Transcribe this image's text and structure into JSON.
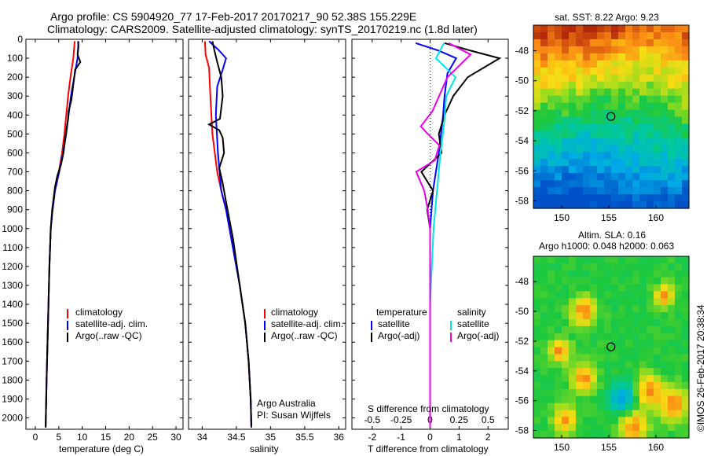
{
  "title_line1": "Argo profile: CS 5904920_77 17-Feb-2017 20170217_90 52.38S 155.229E",
  "title_line2": "Climatology: CARS2009. Satellite-adjusted climatology: synTS_20170219.nc (1.8d later)",
  "colors": {
    "climatology": "#ff0000",
    "satellite": "#0000ff",
    "argo": "#000000",
    "satellite_salinity": "#00e5e5",
    "argo_salinity": "#e800e8"
  },
  "chart_data": [
    {
      "type": "line",
      "xlabel": "temperature (deg C)",
      "xlim": [
        -2,
        31.5
      ],
      "ylim": [
        2060,
        0
      ],
      "xticks": [
        "0",
        "5",
        "10",
        "15",
        "20",
        "25",
        "30"
      ],
      "yticks": [
        "0",
        "100",
        "200",
        "300",
        "400",
        "500",
        "600",
        "700",
        "800",
        "900",
        "1000",
        "1100",
        "1200",
        "1300",
        "1400",
        "1500",
        "1600",
        "1700",
        "1800",
        "1900",
        "2000"
      ],
      "legend": {
        "placement": "middle",
        "entries": [
          "climatology",
          "satellite-adj. clim.",
          "Argo(..raw -QC)"
        ]
      },
      "series": [
        {
          "name": "climatology",
          "points": [
            [
              8.4,
              10
            ],
            [
              8.1,
              100
            ],
            [
              7.5,
              200
            ],
            [
              7.0,
              300
            ],
            [
              6.6,
              400
            ],
            [
              6.2,
              500
            ],
            [
              5.7,
              600
            ],
            [
              5.0,
              700
            ],
            [
              4.2,
              800
            ],
            [
              3.7,
              900
            ],
            [
              3.3,
              1000
            ],
            [
              3.0,
              1200
            ],
            [
              2.8,
              1400
            ],
            [
              2.6,
              1600
            ],
            [
              2.4,
              1800
            ],
            [
              2.2,
              2050
            ]
          ]
        },
        {
          "name": "satellite-adj. clim.",
          "points": [
            [
              9.2,
              10
            ],
            [
              9.0,
              100
            ],
            [
              8.3,
              200
            ],
            [
              7.6,
              300
            ],
            [
              7.1,
              400
            ],
            [
              6.6,
              500
            ],
            [
              5.9,
              600
            ],
            [
              5.1,
              700
            ],
            [
              4.2,
              800
            ],
            [
              3.7,
              900
            ],
            [
              3.3,
              1000
            ],
            [
              3.0,
              1200
            ],
            [
              2.8,
              1400
            ],
            [
              2.6,
              1600
            ],
            [
              2.4,
              1800
            ],
            [
              2.2,
              2050
            ]
          ]
        },
        {
          "name": "Argo(..raw -QC)",
          "points": [
            [
              9.1,
              10
            ],
            [
              9.2,
              40
            ],
            [
              9.0,
              80
            ],
            [
              9.6,
              120
            ],
            [
              8.5,
              160
            ],
            [
              8.3,
              200
            ],
            [
              8.0,
              260
            ],
            [
              7.7,
              320
            ],
            [
              7.1,
              380
            ],
            [
              7.0,
              420
            ],
            [
              6.6,
              480
            ],
            [
              6.3,
              540
            ],
            [
              6.0,
              600
            ],
            [
              5.5,
              660
            ],
            [
              4.7,
              720
            ],
            [
              4.2,
              780
            ],
            [
              3.9,
              840
            ],
            [
              3.6,
              900
            ],
            [
              3.3,
              1000
            ],
            [
              3.0,
              1200
            ],
            [
              2.8,
              1400
            ],
            [
              2.6,
              1600
            ],
            [
              2.4,
              1800
            ],
            [
              2.2,
              2050
            ]
          ]
        }
      ]
    },
    {
      "type": "line",
      "xlabel": "salinity",
      "xlim": [
        33.8,
        36.1
      ],
      "ylim": [
        2060,
        0
      ],
      "xticks": [
        "34",
        "34.5",
        "35",
        "35.5",
        "36"
      ],
      "legend": {
        "placement": "middle",
        "entries": [
          "climatology",
          "satellite-adj. clim.",
          "Argo(..raw -QC)"
        ]
      },
      "annotations": [
        "Argo Australia",
        "PI: Susan Wijffels"
      ],
      "series": [
        {
          "name": "climatology",
          "points": [
            [
              34.04,
              10
            ],
            [
              34.05,
              80
            ],
            [
              34.1,
              150
            ],
            [
              34.12,
              300
            ],
            [
              34.15,
              500
            ],
            [
              34.22,
              700
            ],
            [
              34.28,
              800
            ],
            [
              34.35,
              900
            ],
            [
              34.45,
              1100
            ],
            [
              34.55,
              1300
            ],
            [
              34.63,
              1500
            ],
            [
              34.68,
              1700
            ],
            [
              34.71,
              1900
            ],
            [
              34.72,
              2050
            ]
          ]
        },
        {
          "name": "satellite-adj. clim.",
          "points": [
            [
              34.1,
              10
            ],
            [
              34.25,
              60
            ],
            [
              34.35,
              100
            ],
            [
              34.3,
              160
            ],
            [
              34.22,
              250
            ],
            [
              34.2,
              400
            ],
            [
              34.23,
              600
            ],
            [
              34.28,
              800
            ],
            [
              34.35,
              900
            ],
            [
              34.45,
              1100
            ],
            [
              34.55,
              1300
            ],
            [
              34.63,
              1500
            ],
            [
              34.68,
              1700
            ],
            [
              34.71,
              1900
            ],
            [
              34.72,
              2050
            ]
          ]
        },
        {
          "name": "Argo(..raw -QC)",
          "points": [
            [
              34.15,
              10
            ],
            [
              34.18,
              60
            ],
            [
              34.22,
              120
            ],
            [
              34.28,
              200
            ],
            [
              34.3,
              300
            ],
            [
              34.26,
              420
            ],
            [
              34.1,
              450
            ],
            [
              34.25,
              480
            ],
            [
              34.3,
              520
            ],
            [
              34.32,
              600
            ],
            [
              34.25,
              680
            ],
            [
              34.3,
              760
            ],
            [
              34.35,
              860
            ],
            [
              34.45,
              1050
            ],
            [
              34.55,
              1300
            ],
            [
              34.63,
              1500
            ],
            [
              34.68,
              1700
            ],
            [
              34.71,
              1900
            ],
            [
              34.72,
              2050
            ]
          ]
        }
      ]
    },
    {
      "type": "line",
      "xlabel": "T difference from climatology",
      "top_axis_label": "S difference from climatology",
      "xlim": [
        -2.7,
        2.7
      ],
      "ylim": [
        2060,
        0
      ],
      "xticks": [
        "-2",
        "-1",
        "0",
        "1",
        "2"
      ],
      "s_xticks": [
        "-0.5",
        "-0.25",
        "0",
        "0.25",
        "0.5"
      ],
      "legend": {
        "placement": "middle",
        "headers": [
          "temperature",
          "salinity"
        ],
        "entries": [
          "satellite",
          "Argo(-adj)",
          "satellite",
          "Argo(-adj)"
        ]
      },
      "series": [
        {
          "name": "satellite",
          "group": "temperature",
          "points": [
            [
              -0.5,
              20
            ],
            [
              0.3,
              60
            ],
            [
              0.9,
              100
            ],
            [
              0.6,
              180
            ],
            [
              0.5,
              300
            ],
            [
              0.45,
              400
            ],
            [
              0.3,
              600
            ],
            [
              0.1,
              800
            ],
            [
              0,
              1000
            ],
            [
              0,
              2050
            ]
          ]
        },
        {
          "name": "Argo(-adj)",
          "group": "temperature",
          "points": [
            [
              0.5,
              20
            ],
            [
              1.4,
              60
            ],
            [
              2.4,
              100
            ],
            [
              1.3,
              200
            ],
            [
              0.8,
              300
            ],
            [
              0.5,
              400
            ],
            [
              0.3,
              500
            ],
            [
              0.4,
              600
            ],
            [
              -0.3,
              700
            ],
            [
              0.1,
              800
            ],
            [
              -0.1,
              900
            ],
            [
              0,
              1000
            ],
            [
              0,
              2050
            ]
          ]
        },
        {
          "name": "satellite",
          "group": "salinity",
          "points": [
            [
              0.12,
              20
            ],
            [
              0.05,
              100
            ],
            [
              0.22,
              200
            ],
            [
              0.14,
              300
            ],
            [
              0.12,
              450
            ],
            [
              0.09,
              600
            ],
            [
              0.06,
              800
            ],
            [
              0.03,
              1000
            ],
            [
              0.0,
              1400
            ],
            [
              0.0,
              2050
            ]
          ]
        },
        {
          "name": "Argo(-adj)",
          "group": "salinity",
          "points": [
            [
              0.16,
              20
            ],
            [
              0.35,
              80
            ],
            [
              0.15,
              200
            ],
            [
              0.02,
              380
            ],
            [
              -0.08,
              460
            ],
            [
              -0.02,
              500
            ],
            [
              0.08,
              560
            ],
            [
              0.04,
              640
            ],
            [
              -0.12,
              700
            ],
            [
              -0.05,
              800
            ],
            [
              -0.02,
              900
            ],
            [
              0,
              1000
            ],
            [
              0,
              2050
            ]
          ]
        }
      ]
    },
    {
      "type": "heatmap",
      "title": "sat. SST: 8.22 Argo: 9.23",
      "xlim": [
        147,
        163.5
      ],
      "ylim": [
        -58.5,
        -46.3
      ],
      "xticks": [
        "150",
        "155",
        "160"
      ],
      "yticks": [
        "-48",
        "-50",
        "-52",
        "-54",
        "-56",
        "-58"
      ],
      "marker": [
        155.229,
        -52.38
      ]
    },
    {
      "type": "heatmap",
      "title": "Altim. SLA: 0.16",
      "subtitle": "Argo h1000: 0.048 h2000: 0.063",
      "xlim": [
        147,
        163.5
      ],
      "ylim": [
        -58.5,
        -46.3
      ],
      "xticks": [
        "150",
        "155",
        "160"
      ],
      "yticks": [
        "-48",
        "-50",
        "-52",
        "-54",
        "-56",
        "-58"
      ],
      "marker": [
        155.229,
        -52.38
      ]
    }
  ],
  "credit": "©IMOS 26-Feb-2017 20:38:34"
}
